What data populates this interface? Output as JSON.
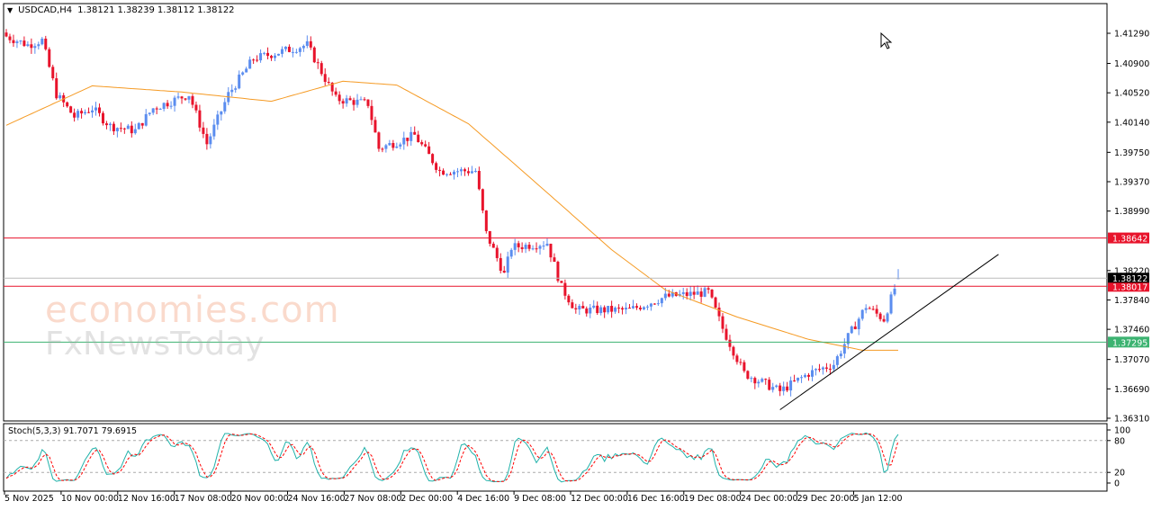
{
  "header": {
    "symbol": "USDCAD,H4",
    "open": "1.38121",
    "high": "1.38239",
    "low": "1.38112",
    "close": "1.38122"
  },
  "watermark": {
    "line1": "economies.com",
    "line2": "FxNewsToday"
  },
  "colors": {
    "bull": "#5b8def",
    "bear": "#e8132b",
    "ma": "#f59a23",
    "support_line": "#3cb371",
    "resistance_line": "#e8132b",
    "stoch_main": "#20b2aa",
    "stoch_signal": "#ff0000",
    "trendline": "#000000"
  },
  "chart_data": {
    "type": "candlestick",
    "symbol": "USDCAD",
    "timeframe": "H4",
    "ylim": [
      1.3625,
      1.4165
    ],
    "y_ticks": [
      "1.41290",
      "1.40900",
      "1.40520",
      "1.40140",
      "1.39750",
      "1.39370",
      "1.38990",
      "1.38220",
      "1.37840",
      "1.37460",
      "1.37070",
      "1.36690",
      "1.36310"
    ],
    "x_ticks": [
      "5 Nov 2025",
      "10 Nov 00:00",
      "12 Nov 16:00",
      "17 Nov 08:00",
      "20 Nov 00:00",
      "24 Nov 16:00",
      "27 Nov 08:00",
      "2 Dec 00:00",
      "4 Dec 16:00",
      "9 Dec 08:00",
      "12 Dec 00:00",
      "16 Dec 16:00",
      "19 Dec 08:00",
      "24 Dec 00:00",
      "29 Dec 20:00",
      "5 Jan 12:00"
    ],
    "close_path": [
      [
        0,
        1.4125
      ],
      [
        6,
        1.4114
      ],
      [
        10,
        1.412
      ],
      [
        14,
        1.405
      ],
      [
        19,
        1.4021
      ],
      [
        24,
        1.4032
      ],
      [
        29,
        1.4009
      ],
      [
        36,
        1.4003
      ],
      [
        41,
        1.4032
      ],
      [
        51,
        1.405
      ],
      [
        56,
        1.3986
      ],
      [
        62,
        1.405
      ],
      [
        69,
        1.4096
      ],
      [
        74,
        1.4102
      ],
      [
        84,
        1.4114
      ],
      [
        92,
        1.4044
      ],
      [
        101,
        1.4038
      ],
      [
        104,
        1.398
      ],
      [
        114,
        1.3997
      ],
      [
        121,
        1.3951
      ],
      [
        131,
        1.3951
      ],
      [
        134,
        1.387
      ],
      [
        139,
        1.3817
      ],
      [
        141,
        1.3852
      ],
      [
        151,
        1.3858
      ],
      [
        155,
        1.38
      ],
      [
        159,
        1.3771
      ],
      [
        174,
        1.3771
      ],
      [
        184,
        1.3788
      ],
      [
        196,
        1.3794
      ],
      [
        200,
        1.3747
      ],
      [
        206,
        1.3689
      ],
      [
        216,
        1.3666
      ],
      [
        224,
        1.3689
      ],
      [
        231,
        1.3701
      ],
      [
        235,
        1.3736
      ],
      [
        240,
        1.3776
      ],
      [
        245,
        1.3759
      ],
      [
        249,
        1.38122
      ]
    ],
    "moving_average_path": [
      [
        0,
        1.401
      ],
      [
        24,
        1.4061
      ],
      [
        49,
        1.4053
      ],
      [
        74,
        1.4041
      ],
      [
        94,
        1.4067
      ],
      [
        109,
        1.4062
      ],
      [
        129,
        1.4012
      ],
      [
        149,
        1.3931
      ],
      [
        169,
        1.3849
      ],
      [
        184,
        1.3797
      ],
      [
        204,
        1.3762
      ],
      [
        224,
        1.3733
      ],
      [
        239,
        1.3719
      ],
      [
        249,
        1.3719
      ]
    ],
    "horizontal_levels": [
      {
        "price": 1.38642,
        "label": "1.38642",
        "type": "resistance"
      },
      {
        "price": 1.38017,
        "label": "1.38017",
        "type": "support"
      },
      {
        "price": 1.37295,
        "label": "1.37295",
        "type": "support"
      }
    ],
    "current_price": {
      "price": 1.38122,
      "label": "1.38122"
    },
    "trendline": {
      "from": [
        216,
        1.3642
      ],
      "to": [
        277,
        1.3843
      ]
    },
    "indicator": {
      "name": "Stoch(5,3,3)",
      "main": "91.7071",
      "signal": "79.6915",
      "levels": [
        20,
        80
      ],
      "ylim": [
        0,
        100
      ],
      "y_ticks": [
        "100",
        "80",
        "20",
        "0"
      ]
    }
  }
}
